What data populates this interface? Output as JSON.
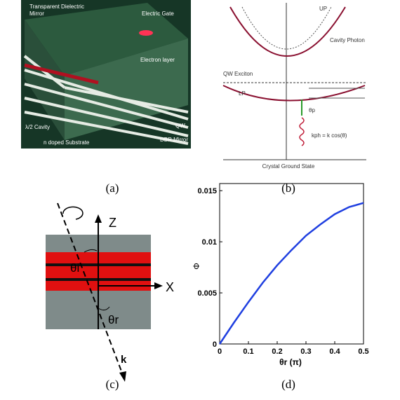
{
  "panels": {
    "a": {
      "caption": "(a)",
      "labels": [
        "Transparent Dielectric",
        "Mirror",
        "Electric Gate",
        "Electron layer",
        "λ/2 Cavity",
        "n doped Substrate",
        "DBR Mirror",
        "QW"
      ]
    },
    "b": {
      "caption": "(b)",
      "labels": [
        "UP",
        "Cavity Photon",
        "QW Exciton",
        "LP",
        "θp",
        "kph = k cos(θ)",
        "Crystal Ground State"
      ]
    },
    "c": {
      "caption": "(c)",
      "labels": [
        "Z",
        "X",
        "θi",
        "θr",
        "k"
      ]
    },
    "d": {
      "caption": "(d)"
    }
  },
  "chart_data": {
    "type": "line",
    "xlabel": "θr (π)",
    "ylabel": "Φ",
    "x": [
      0,
      0.05,
      0.1,
      0.15,
      0.2,
      0.25,
      0.3,
      0.35,
      0.4,
      0.45,
      0.5
    ],
    "series": [
      {
        "color": "#1f3fe0",
        "values": [
          0,
          0.0021,
          0.0041,
          0.006,
          0.0077,
          0.0092,
          0.0106,
          0.0117,
          0.0127,
          0.0134,
          0.0138
        ]
      }
    ],
    "xlim": [
      0,
      0.5
    ],
    "ylim": [
      0,
      0.0157
    ],
    "xticks": [
      0,
      0.1,
      0.2,
      0.3,
      0.4,
      0.5
    ],
    "yticks": [
      0,
      0.005,
      0.01,
      0.015
    ]
  }
}
